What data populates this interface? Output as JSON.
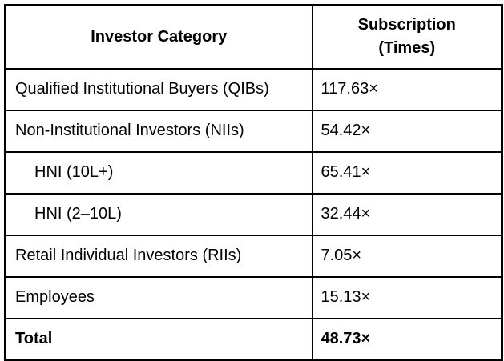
{
  "table": {
    "headers": {
      "col1": "Investor Category",
      "col2_line1": "Subscription",
      "col2_line2": "(Times)"
    },
    "rows": [
      {
        "category": "Qualified Institutional Buyers (QIBs)",
        "subscription": "117.63×"
      },
      {
        "category": "Non-Institutional Investors (NIIs)",
        "subscription": "54.42×"
      },
      {
        "category": "HNI (10L+)",
        "subscription": "65.41×"
      },
      {
        "category": "HNI (2–10L)",
        "subscription": "32.44×"
      },
      {
        "category": "Retail Individual Investors (RIIs)",
        "subscription": "7.05×"
      },
      {
        "category": "Employees",
        "subscription": "15.13×"
      },
      {
        "category": "Total",
        "subscription": "48.73×"
      }
    ]
  },
  "colors": {
    "border": "#000000",
    "text": "#000000",
    "background": "#ffffff"
  },
  "chart_data": {
    "type": "table",
    "title": "",
    "columns": [
      "Investor Category",
      "Subscription (Times)"
    ],
    "rows": [
      [
        "Qualified Institutional Buyers (QIBs)",
        117.63
      ],
      [
        "Non-Institutional Investors (NIIs)",
        54.42
      ],
      [
        "HNI (10L+)",
        65.41
      ],
      [
        "HNI (2–10L)",
        32.44
      ],
      [
        "Retail Individual Investors (RIIs)",
        7.05
      ],
      [
        "Employees",
        15.13
      ],
      [
        "Total",
        48.73
      ]
    ],
    "value_unit": "× (times subscribed)",
    "notes": "HNI (10L+) and HNI (2–10L) are indented sub-rows of Non-Institutional Investors (NIIs); Total row rendered bold"
  }
}
